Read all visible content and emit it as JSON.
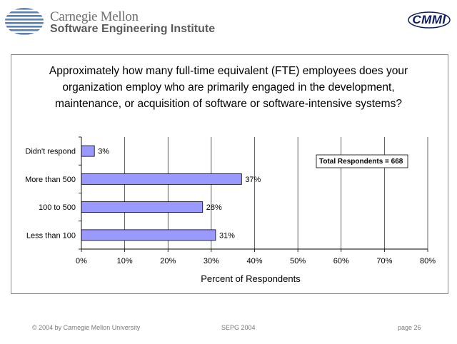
{
  "header": {
    "org_line1": "Carnegie Mellon",
    "org_line2": "Software Engineering Institute",
    "logo_icon": "sei-striped-globe-icon",
    "badge": "CMMI"
  },
  "question": "Approximately how many full-time equivalent (FTE) employees does your organization employ who are primarily engaged in the development, maintenance, or acquisition of software or software-intensive systems?",
  "chart_data": {
    "type": "bar",
    "orientation": "horizontal",
    "categories": [
      "Didn't respond",
      "More than 500",
      "100 to 500",
      "Less than 100"
    ],
    "values": [
      3,
      37,
      28,
      31
    ],
    "data_labels": [
      "3%",
      "37%",
      "28%",
      "31%"
    ],
    "xlim": [
      0,
      80
    ],
    "xticks": [
      0,
      10,
      20,
      30,
      40,
      50,
      60,
      70,
      80
    ],
    "xtick_labels": [
      "0%",
      "10%",
      "20%",
      "30%",
      "40%",
      "50%",
      "60%",
      "70%",
      "80%"
    ],
    "xlabel": "Percent of Respondents",
    "grid": "vertical",
    "annotation": "Total Respondents = 668",
    "bar_color": "#9999ff",
    "bar_edge_color": "#000000"
  },
  "footer": {
    "copyright": "© 2004 by Carnegie Mellon University",
    "event": "SEPG 2004",
    "page": "page 26"
  }
}
